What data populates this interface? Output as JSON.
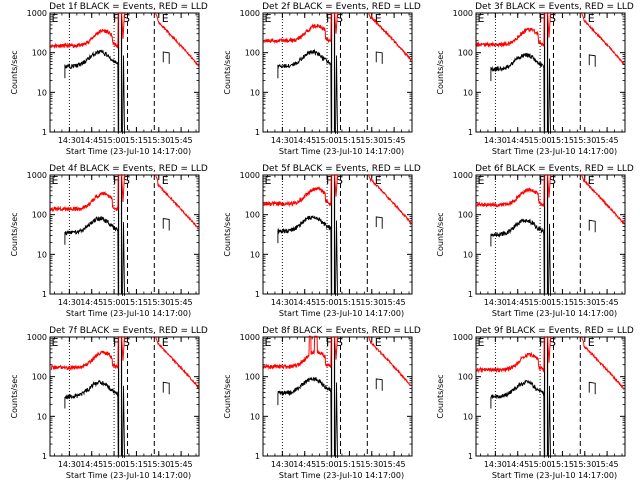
{
  "chart_data": {
    "type": "line",
    "layout": "3x3 grid",
    "xlabel": "Start Time (23-Jul-10 14:17:00)",
    "ylabel": "Counts/sec",
    "yscale": "log",
    "ylim": [
      1,
      1000
    ],
    "yticks": [
      "1",
      "10",
      "100",
      "1000"
    ],
    "xlim": [
      "14:17",
      "15:57"
    ],
    "xticks": [
      "14:30",
      "14:45",
      "15:00",
      "15:15",
      "15:30",
      "15:45"
    ],
    "legend": "in title",
    "series_colors": {
      "Events": "#000000",
      "LLD": "#ff0000"
    },
    "flag_letters": [
      "E",
      "F",
      "S",
      "E"
    ],
    "panels": [
      {
        "title": "Det 1f BLACK = Events, RED = LLD",
        "lld_base": 150,
        "events_base": 65,
        "lld_spikes": []
      },
      {
        "title": "Det 2f BLACK = Events, RED = LLD",
        "lld_base": 200,
        "events_base": 65,
        "lld_spikes": []
      },
      {
        "title": "Det 3f BLACK = Events, RED = LLD",
        "lld_base": 160,
        "events_base": 55,
        "lld_spikes": []
      },
      {
        "title": "Det 4f BLACK = Events, RED = LLD",
        "lld_base": 140,
        "events_base": 50,
        "lld_spikes": []
      },
      {
        "title": "Det 5f BLACK = Events, RED = LLD",
        "lld_base": 190,
        "events_base": 55,
        "lld_spikes": []
      },
      {
        "title": "Det 6f BLACK = Events, RED = LLD",
        "lld_base": 180,
        "events_base": 45,
        "lld_spikes": []
      },
      {
        "title": "Det 7f BLACK = Events, RED = LLD",
        "lld_base": 170,
        "events_base": 45,
        "lld_spikes": []
      },
      {
        "title": "Det 8f BLACK = Events, RED = LLD",
        "lld_base": 180,
        "events_base": 55,
        "lld_spikes": [
          [
            14.8,
            14.82
          ],
          [
            14.86,
            14.89
          ]
        ]
      },
      {
        "title": "Det 9f BLACK = Events, RED = LLD",
        "lld_base": 150,
        "events_base": 45,
        "lld_spikes": []
      }
    ],
    "markers": {
      "dotted_lines": [
        "14:30",
        "15:00"
      ],
      "solid_lines": [
        "15:03",
        "15:05"
      ],
      "dashed_lines": [
        "15:09",
        "15:27"
      ],
      "flag_positions": {
        "E1": "14:18",
        "F": "15:02",
        "S": "15:06",
        "E2": "15:32"
      }
    }
  }
}
